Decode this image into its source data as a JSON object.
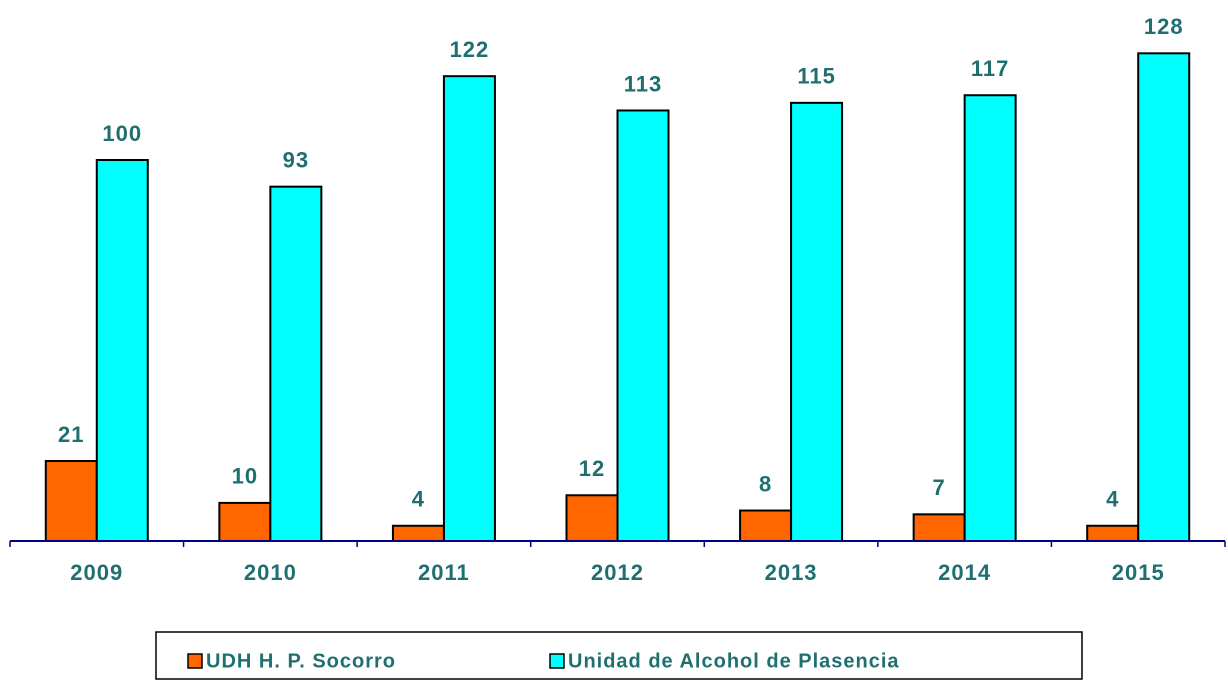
{
  "chart_data": {
    "type": "bar",
    "categories": [
      "2009",
      "2010",
      "2011",
      "2012",
      "2013",
      "2014",
      "2015"
    ],
    "series": [
      {
        "name": "UDH H. P. Socorro",
        "color": "#ff6600",
        "values": [
          21,
          10,
          4,
          12,
          8,
          7,
          4
        ]
      },
      {
        "name": "Unidad de Alcohol de Plasencia",
        "color": "#00ffff",
        "values": [
          100,
          93,
          122,
          113,
          115,
          117,
          128
        ]
      }
    ],
    "legend": "bottom"
  }
}
